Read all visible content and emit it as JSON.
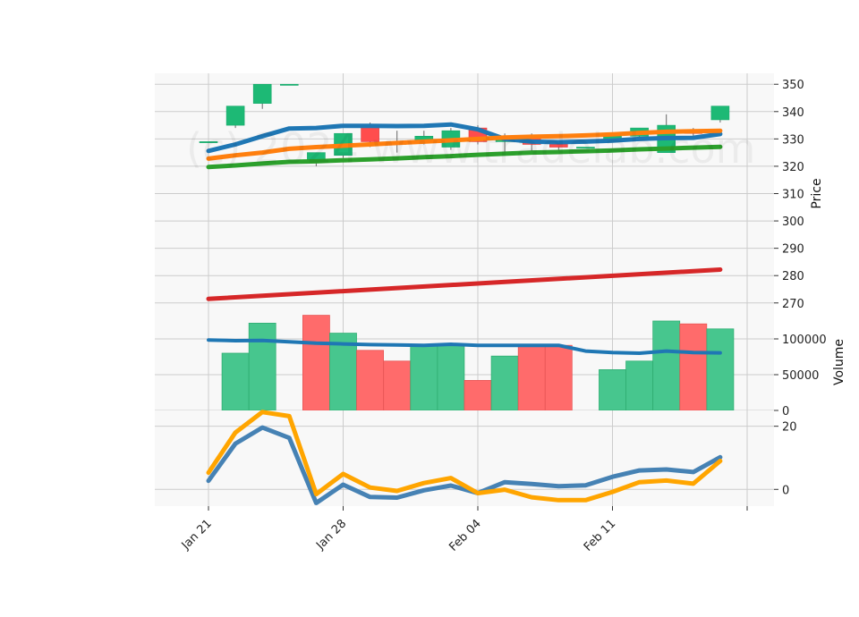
{
  "chart_data": {
    "type": "candlestick",
    "dates": [
      "Jan 21",
      "Jan 22",
      "Jan 23",
      "Jan 24",
      "Jan 25",
      "Jan 28",
      "Jan 29",
      "Jan 30",
      "Jan 31",
      "Feb 01",
      "Feb 04",
      "Feb 05",
      "Feb 06",
      "Feb 07",
      "Feb 08",
      "Feb 11",
      "Feb 12",
      "Feb 13",
      "Feb 14",
      "Feb 15"
    ],
    "x_tick_labels": [
      "Jan 21",
      "Jan 28",
      "Feb 04",
      "Feb 11"
    ],
    "watermark": "(c) 2024 www.tradelab.com",
    "ohlc_panel": {
      "ylabel": "Price",
      "ylim": [
        266,
        354
      ],
      "yticks": [
        270,
        280,
        290,
        300,
        310,
        320,
        330,
        340,
        350
      ],
      "candles": [
        {
          "date": "Jan 21",
          "open": 329,
          "high": 329,
          "low": 329,
          "close": 329
        },
        {
          "date": "Jan 22",
          "open": 335,
          "high": 342,
          "low": 334,
          "close": 342
        },
        {
          "date": "Jan 23",
          "open": 343,
          "high": 350,
          "low": 341,
          "close": 350
        },
        {
          "date": "Jan 24",
          "open": 350,
          "high": 350,
          "low": 350,
          "close": 350
        },
        {
          "date": "Jan 25",
          "open": 322,
          "high": 325,
          "low": 320,
          "close": 325
        },
        {
          "date": "Jan 28",
          "open": 324,
          "high": 332,
          "low": 323,
          "close": 332
        },
        {
          "date": "Jan 29",
          "open": 335,
          "high": 336,
          "low": 327,
          "close": 329
        },
        {
          "date": "Jan 30",
          "open": 328,
          "high": 333,
          "low": 325,
          "close": 329
        },
        {
          "date": "Jan 31",
          "open": 329,
          "high": 333,
          "low": 328,
          "close": 331
        },
        {
          "date": "Feb 01",
          "open": 327,
          "high": 334,
          "low": 326,
          "close": 333
        },
        {
          "date": "Feb 04",
          "open": 334,
          "high": 335,
          "low": 328,
          "close": 329
        },
        {
          "date": "Feb 05",
          "open": 329,
          "high": 332,
          "low": 325,
          "close": 331
        },
        {
          "date": "Feb 06",
          "open": 331,
          "high": 332,
          "low": 325,
          "close": 328
        },
        {
          "date": "Feb 07",
          "open": 328,
          "high": 329,
          "low": 326,
          "close": 327
        },
        {
          "date": "Feb 08",
          "open": 327,
          "high": 327,
          "low": 327,
          "close": 327
        },
        {
          "date": "Feb 11",
          "open": 330,
          "high": 331,
          "low": 330,
          "close": 331
        },
        {
          "date": "Feb 12",
          "open": 331,
          "high": 334,
          "low": 330,
          "close": 334
        },
        {
          "date": "Feb 13",
          "open": 325,
          "high": 339,
          "low": 325,
          "close": 335
        },
        {
          "date": "Feb 14",
          "open": 333,
          "high": 334,
          "low": 330,
          "close": 332
        },
        {
          "date": "Feb 15",
          "open": 337,
          "high": 342,
          "low": 336,
          "close": 342
        }
      ],
      "overlays": [
        {
          "color": "#1f77b4",
          "points": [
            [
              0,
              325.6
            ],
            [
              1,
              328.0
            ],
            [
              2,
              331.0
            ],
            [
              3,
              333.8
            ],
            [
              4,
              334.0
            ],
            [
              5,
              334.8
            ],
            [
              6,
              334.8
            ],
            [
              7,
              334.7
            ],
            [
              8,
              334.8
            ],
            [
              9,
              335.3
            ],
            [
              10,
              333.5
            ],
            [
              11,
              330.0
            ],
            [
              12,
              329.0
            ],
            [
              13,
              328.8
            ],
            [
              14,
              329.0
            ],
            [
              15,
              329.4
            ],
            [
              16,
              330.0
            ],
            [
              17,
              330.3
            ],
            [
              18,
              330.4
            ],
            [
              19,
              331.8
            ]
          ]
        },
        {
          "color": "#ff7f0e",
          "points": [
            [
              0,
              322.8
            ],
            [
              1,
              324.0
            ],
            [
              2,
              325.0
            ],
            [
              3,
              326.4
            ],
            [
              4,
              327.0
            ],
            [
              5,
              327.5
            ],
            [
              6,
              328.0
            ],
            [
              7,
              328.5
            ],
            [
              8,
              329.0
            ],
            [
              9,
              329.5
            ],
            [
              10,
              330.0
            ],
            [
              11,
              330.5
            ],
            [
              12,
              330.8
            ],
            [
              13,
              331.0
            ],
            [
              14,
              331.3
            ],
            [
              15,
              331.7
            ],
            [
              16,
              332.2
            ],
            [
              17,
              332.6
            ],
            [
              18,
              332.8
            ],
            [
              19,
              333.0
            ]
          ]
        },
        {
          "color": "#2ca02c",
          "points": [
            [
              0,
              319.7
            ],
            [
              1,
              320.3
            ],
            [
              2,
              321.0
            ],
            [
              3,
              321.6
            ],
            [
              4,
              321.8
            ],
            [
              5,
              322.2
            ],
            [
              6,
              322.5
            ],
            [
              7,
              322.9
            ],
            [
              8,
              323.3
            ],
            [
              9,
              323.7
            ],
            [
              10,
              324.2
            ],
            [
              11,
              324.6
            ],
            [
              12,
              325.0
            ],
            [
              13,
              325.2
            ],
            [
              14,
              325.5
            ],
            [
              15,
              325.8
            ],
            [
              16,
              326.2
            ],
            [
              17,
              326.5
            ],
            [
              18,
              326.8
            ],
            [
              19,
              327.1
            ]
          ]
        },
        {
          "color": "#d62728",
          "points": [
            [
              0,
              271.5
            ],
            [
              19,
              282.2
            ]
          ]
        }
      ]
    },
    "volume_panel": {
      "ylabel": "Volume",
      "ylim": [
        0,
        135000
      ],
      "yticks": [
        0,
        50000,
        100000
      ],
      "ytick_labels": [
        "0",
        "50000",
        "100000"
      ],
      "bars": [
        {
          "date": "Jan 21",
          "value": 0,
          "direction": "up"
        },
        {
          "date": "Jan 22",
          "value": 80000,
          "direction": "up"
        },
        {
          "date": "Jan 23",
          "value": 122000,
          "direction": "up"
        },
        {
          "date": "Jan 24",
          "value": 0,
          "direction": "up"
        },
        {
          "date": "Jan 25",
          "value": 133000,
          "direction": "down"
        },
        {
          "date": "Jan 28",
          "value": 108000,
          "direction": "up"
        },
        {
          "date": "Jan 29",
          "value": 84000,
          "direction": "down"
        },
        {
          "date": "Jan 30",
          "value": 69000,
          "direction": "down"
        },
        {
          "date": "Jan 31",
          "value": 91000,
          "direction": "up"
        },
        {
          "date": "Feb 01",
          "value": 91000,
          "direction": "up"
        },
        {
          "date": "Feb 04",
          "value": 42000,
          "direction": "down"
        },
        {
          "date": "Feb 05",
          "value": 76000,
          "direction": "up"
        },
        {
          "date": "Feb 06",
          "value": 91000,
          "direction": "down"
        },
        {
          "date": "Feb 07",
          "value": 91000,
          "direction": "down"
        },
        {
          "date": "Feb 08",
          "value": 0,
          "direction": "up"
        },
        {
          "date": "Feb 11",
          "value": 57000,
          "direction": "up"
        },
        {
          "date": "Feb 12",
          "value": 69000,
          "direction": "up"
        },
        {
          "date": "Feb 13",
          "value": 125000,
          "direction": "up"
        },
        {
          "date": "Feb 14",
          "value": 121000,
          "direction": "down"
        },
        {
          "date": "Feb 15",
          "value": 114000,
          "direction": "up"
        }
      ],
      "average_line": {
        "color": "#1f77b4",
        "points": [
          [
            0,
            98500
          ],
          [
            1,
            97500
          ],
          [
            2,
            97800
          ],
          [
            3,
            96000
          ],
          [
            4,
            94000
          ],
          [
            5,
            93000
          ],
          [
            6,
            92000
          ],
          [
            7,
            91500
          ],
          [
            8,
            91000
          ],
          [
            9,
            92500
          ],
          [
            10,
            91000
          ],
          [
            11,
            91000
          ],
          [
            12,
            91000
          ],
          [
            13,
            91000
          ],
          [
            14,
            83000
          ],
          [
            15,
            81000
          ],
          [
            16,
            80000
          ],
          [
            17,
            83000
          ],
          [
            18,
            81000
          ],
          [
            19,
            80500
          ]
        ]
      }
    },
    "indicator_panel": {
      "ylim": [
        -5.3,
        25
      ],
      "yticks": [
        0,
        20
      ],
      "series": [
        {
          "color": "#4682b4",
          "values": [
            2.7,
            14.5,
            19.6,
            16.3,
            -4.3,
            1.5,
            -2.4,
            -2.6,
            -0.3,
            1.2,
            -1.2,
            2.3,
            1.7,
            1.0,
            1.3,
            4.0,
            6.0,
            6.3,
            5.5,
            10.2
          ]
        },
        {
          "color": "#ffa500",
          "values": [
            5.3,
            18.0,
            24.5,
            23.2,
            -1.5,
            4.9,
            0.6,
            -0.5,
            2.0,
            3.6,
            -1.2,
            -0.1,
            -2.5,
            -3.4,
            -3.4,
            -0.8,
            2.3,
            2.8,
            1.8,
            9.0
          ]
        }
      ]
    },
    "colors": {
      "up": "#26a69a",
      "up_fill": "#1db975",
      "down": "#ff4d4d",
      "plot_bg": "#f8f8f8",
      "grid": "#cccccc"
    }
  }
}
